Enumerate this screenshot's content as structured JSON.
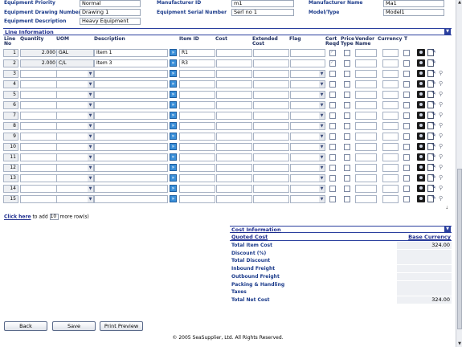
{
  "header": {
    "equipment_priority_label": "Equipment Priority",
    "equipment_priority": "Normal",
    "drawing_number_label": "Equipment Drawing Number",
    "drawing_number": "Drawing 1",
    "description_label": "Equipment Description",
    "description": "Heavy Equipment",
    "manufacturer_id_label": "Manufacturer ID",
    "manufacturer_id": "m1",
    "serial_number_label": "Equipment Serial Number",
    "serial_number": "Serl no 1",
    "manufacturer_name_label": "Manufacturer Name",
    "manufacturer_name": "Ma1",
    "model_type_label": "Model/Type",
    "model_type": "Model1"
  },
  "line_info": {
    "title": "Line Information",
    "columns": {
      "line_no": "Line No",
      "quantity": "Quantity",
      "uom": "UOM",
      "description": "Description",
      "item_id": "Item ID",
      "cost": "Cost",
      "extended_cost": "Extended Cost",
      "flag": "Flag",
      "cert_reqd": "Cert Reqd",
      "price_type": "Price Type",
      "vendor_name": "Vendor Name",
      "currency": "Currency",
      "t": "T"
    },
    "rows": [
      {
        "no": "1",
        "qty": "2.000",
        "uom": "GAL",
        "desc": "Item 1",
        "item_id": "R1"
      },
      {
        "no": "2",
        "qty": "2.000",
        "uom": "C/L",
        "desc": "Item 3",
        "item_id": "R3"
      },
      {
        "no": "3"
      },
      {
        "no": "4"
      },
      {
        "no": "5"
      },
      {
        "no": "6"
      },
      {
        "no": "7"
      },
      {
        "no": "8"
      },
      {
        "no": "9"
      },
      {
        "no": "10"
      },
      {
        "no": "11"
      },
      {
        "no": "12"
      },
      {
        "no": "13"
      },
      {
        "no": "14"
      },
      {
        "no": "15"
      }
    ]
  },
  "add_rows": {
    "link": "Click here",
    "text_before": "to add",
    "value": "10",
    "text_after": "more row(s)"
  },
  "cost_info": {
    "title": "Cost Information",
    "quoted_cost": "Quoted Cost",
    "base_currency": "Base Currency",
    "rows": [
      {
        "label": "Total Item Cost",
        "value": "324.00"
      },
      {
        "label": "Discount (%)",
        "value": ""
      },
      {
        "label": "Total Discount",
        "value": ""
      },
      {
        "label": "Inbound Freight",
        "value": ""
      },
      {
        "label": "Outbound Freight",
        "value": ""
      },
      {
        "label": "Packing & Handling",
        "value": ""
      },
      {
        "label": "Taxes",
        "value": ""
      },
      {
        "label": "Total Net Cost",
        "value": "324.00"
      }
    ]
  },
  "buttons": {
    "back": "Back",
    "save": "Save",
    "print_preview": "Print Preview"
  },
  "footer": "© 2005 SeaSupplier, Ltd. All Rights Reserved.",
  "colors": {
    "label_blue": "#1a3a8a",
    "section_blue": "#2a3f9e",
    "go_button": "#3a8fd8"
  }
}
